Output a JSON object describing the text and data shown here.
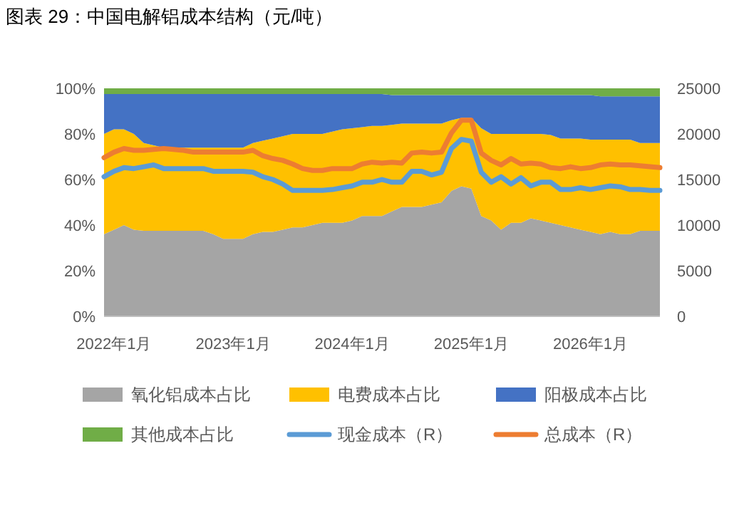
{
  "chart_data": {
    "type": "area",
    "title": "图表 29：中国电解铝成本结构（元/吨）",
    "stacked": true,
    "legend": "bottom",
    "grid": false,
    "x": [
      "2021-12",
      "2022-01",
      "2022-02",
      "2022-03",
      "2022-04",
      "2022-05",
      "2022-06",
      "2022-07",
      "2022-08",
      "2022-09",
      "2022-10",
      "2022-11",
      "2022-12",
      "2023-01",
      "2023-02",
      "2023-03",
      "2023-04",
      "2023-05",
      "2023-06",
      "2023-07",
      "2023-08",
      "2023-09",
      "2023-10",
      "2023-11",
      "2023-12",
      "2024-01",
      "2024-02",
      "2024-03",
      "2024-04",
      "2024-05",
      "2024-06",
      "2024-07",
      "2024-08",
      "2024-09",
      "2024-10",
      "2024-11",
      "2024-12",
      "2025-01",
      "2025-02",
      "2025-03",
      "2025-04",
      "2025-05",
      "2025-06",
      "2025-07",
      "2025-08",
      "2025-09",
      "2025-10",
      "2025-11",
      "2025-12",
      "2026-01",
      "2026-02",
      "2026-03",
      "2026-04",
      "2026-05",
      "2026-06",
      "2026-07",
      "2026-08"
    ],
    "xlim": [
      "2021-12",
      "2026-08"
    ],
    "xticks": [
      {
        "value": "2022-01",
        "label": "2022年1月"
      },
      {
        "value": "2023-01",
        "label": "2023年1月"
      },
      {
        "value": "2024-01",
        "label": "2024年1月"
      },
      {
        "value": "2025-01",
        "label": "2025年1月"
      },
      {
        "value": "2026-01",
        "label": "2026年1月"
      }
    ],
    "ylim": [
      0,
      100
    ],
    "yticks": [
      {
        "value": 0,
        "label": "0%"
      },
      {
        "value": 20,
        "label": "20%"
      },
      {
        "value": 40,
        "label": "40%"
      },
      {
        "value": 60,
        "label": "60%"
      },
      {
        "value": 80,
        "label": "80%"
      },
      {
        "value": 100,
        "label": "100%"
      }
    ],
    "y2lim": [
      0,
      25000
    ],
    "y2ticks": [
      0,
      5000,
      10000,
      15000,
      20000,
      25000
    ],
    "series": [
      {
        "name": "氧化铝成本占比",
        "color": "#a5a5a5",
        "values": [
          36,
          38,
          40,
          38,
          37.5,
          37.5,
          37.5,
          37.5,
          37.5,
          37.5,
          37.5,
          36,
          34,
          34,
          34,
          36,
          37,
          37,
          38,
          39,
          39,
          40,
          41,
          41,
          41,
          42,
          44,
          44,
          44,
          46,
          48,
          48,
          48,
          49,
          50,
          55,
          57,
          56,
          44,
          42,
          38,
          41,
          41,
          43,
          42,
          41,
          40,
          39,
          38,
          37,
          36,
          37,
          36,
          36,
          37.5,
          37.5,
          37.5
        ]
      },
      {
        "name": "电费成本占比",
        "color": "#ffc000",
        "values": [
          44,
          44,
          42,
          42,
          38.5,
          37.5,
          36.5,
          36.5,
          36.5,
          36.5,
          36.5,
          38,
          40,
          40,
          40,
          40,
          40,
          41,
          41,
          41,
          41,
          40,
          39,
          40,
          41,
          40.5,
          39,
          39.5,
          39.5,
          38,
          36.5,
          36.5,
          36.5,
          35.5,
          34.5,
          31,
          30,
          31,
          38.5,
          38,
          42,
          39,
          39,
          37,
          38,
          38.5,
          38,
          39,
          40,
          40.5,
          41.5,
          40.5,
          41.5,
          41.5,
          38.5,
          38.5,
          38.5
        ]
      },
      {
        "name": "阳极成本占比",
        "color": "#4472c4",
        "values": [
          17.5,
          15.5,
          15.5,
          17.5,
          21.5,
          22.5,
          23.5,
          23.5,
          23.5,
          23.5,
          23.5,
          23.5,
          23.5,
          23.5,
          23.5,
          21.5,
          20.5,
          19.5,
          18.5,
          17.5,
          17.5,
          17.5,
          17.5,
          16.5,
          15.5,
          15,
          14.5,
          14,
          14,
          13,
          12.5,
          12.5,
          12.5,
          12.5,
          12.5,
          11,
          10,
          10,
          14.5,
          17,
          17,
          17,
          17,
          17,
          17,
          17.5,
          19,
          19,
          19,
          19.5,
          19,
          19,
          19,
          19,
          20.5,
          20.5,
          20.5
        ]
      },
      {
        "name": "其他成本占比",
        "color": "#70ad47",
        "values": [
          2.5,
          2.5,
          2.5,
          2.5,
          2.5,
          2.5,
          2.5,
          2.5,
          2.5,
          2.5,
          2.5,
          2.5,
          2.5,
          2.5,
          2.5,
          2.5,
          2.5,
          2.5,
          2.5,
          2.5,
          2.5,
          2.5,
          2.5,
          2.5,
          2.5,
          2.5,
          2.5,
          2.5,
          2.5,
          3,
          3,
          3,
          3,
          3,
          3,
          3,
          3,
          3,
          3,
          3,
          3,
          3,
          3,
          3,
          3,
          3,
          3,
          3,
          3,
          3,
          3.5,
          3.5,
          3.5,
          3.5,
          3.5,
          3.5,
          3.5
        ]
      },
      {
        "name": "现金成本（R）",
        "type": "line",
        "axis": "y2",
        "color": "#5b9bd5",
        "values": [
          15300,
          15900,
          16300,
          16200,
          16400,
          16600,
          16200,
          16200,
          16200,
          16200,
          16200,
          15900,
          15900,
          15900,
          15900,
          15800,
          15300,
          15000,
          14500,
          13800,
          13800,
          13800,
          13800,
          13900,
          14100,
          14300,
          14700,
          14700,
          15000,
          14700,
          14700,
          15900,
          15900,
          15500,
          15800,
          18400,
          19400,
          19200,
          15800,
          14700,
          15300,
          14500,
          15200,
          14300,
          14700,
          14700,
          13900,
          13900,
          14100,
          13900,
          14100,
          14300,
          14200,
          13900,
          13900,
          13800,
          13800
        ]
      },
      {
        "name": "总成本（R）",
        "type": "line",
        "axis": "y2",
        "color": "#ed7d31",
        "values": [
          17400,
          18000,
          18400,
          18200,
          18200,
          18300,
          18400,
          18300,
          18200,
          18000,
          18000,
          18000,
          18000,
          18000,
          18000,
          18200,
          17600,
          17300,
          17100,
          16700,
          16200,
          16000,
          16000,
          16200,
          16200,
          16200,
          16700,
          16900,
          16800,
          16900,
          16800,
          17900,
          18000,
          17900,
          18000,
          20100,
          21500,
          21500,
          17900,
          17100,
          16600,
          17300,
          16700,
          16800,
          16700,
          16300,
          16200,
          16400,
          16200,
          16300,
          16600,
          16700,
          16600,
          16600,
          16500,
          16400,
          16300
        ]
      }
    ]
  }
}
